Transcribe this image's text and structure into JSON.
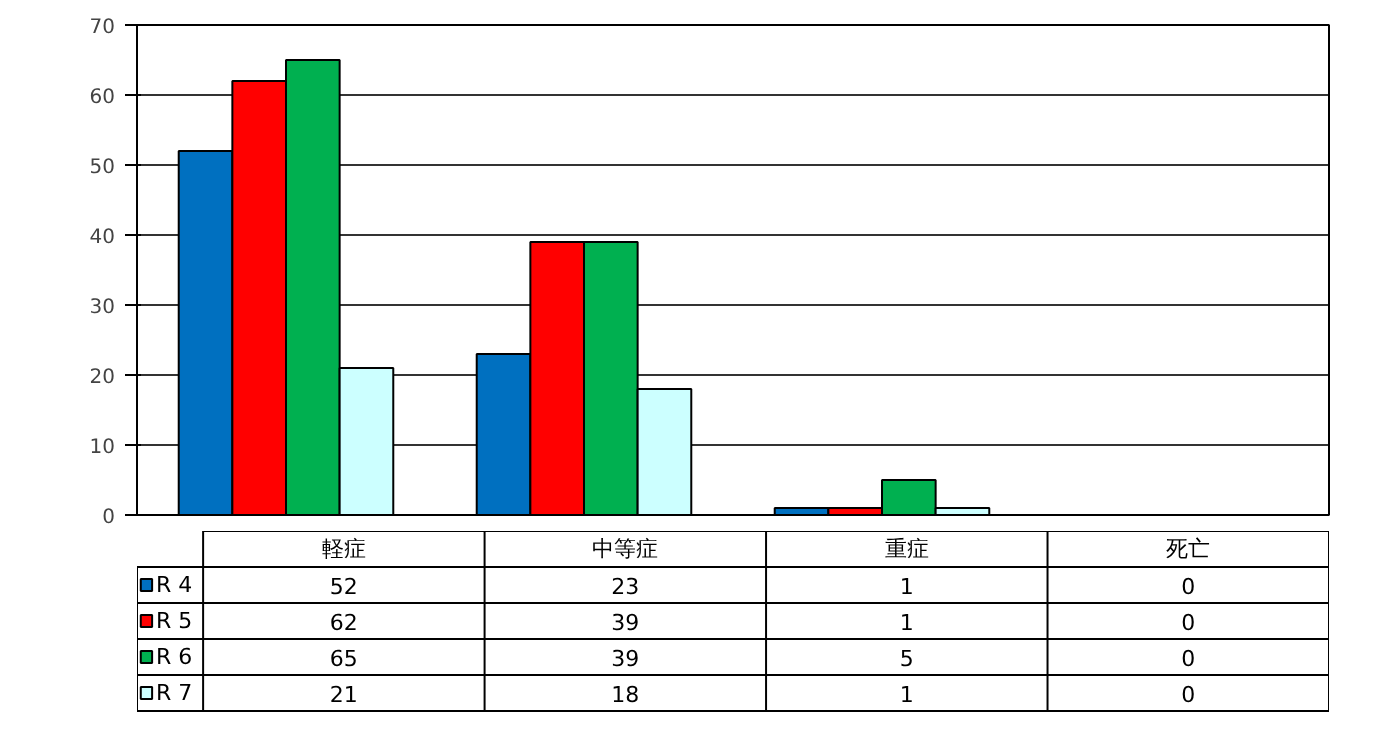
{
  "chart_data": {
    "type": "bar",
    "categories": [
      "軽症",
      "中等症",
      "重症",
      "死亡"
    ],
    "series": [
      {
        "name": "R 4",
        "color": "#0070c0",
        "values": [
          52,
          23,
          1,
          0
        ]
      },
      {
        "name": "R 5",
        "color": "#ff0000",
        "values": [
          62,
          39,
          1,
          0
        ]
      },
      {
        "name": "R 6",
        "color": "#00b050",
        "values": [
          65,
          39,
          5,
          0
        ]
      },
      {
        "name": "R 7",
        "color": "#ccffff",
        "values": [
          21,
          18,
          1,
          0
        ]
      }
    ],
    "ylim": [
      0,
      70
    ],
    "yticks": [
      0,
      10,
      20,
      30,
      40,
      50,
      60,
      70
    ],
    "grid": "y",
    "legend": "bottom left",
    "data_labels": true
  }
}
